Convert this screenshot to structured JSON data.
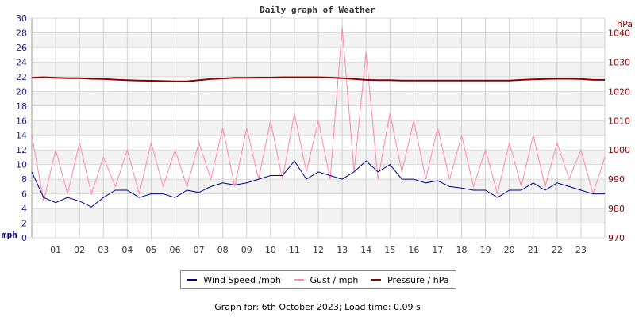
{
  "chart_data": {
    "type": "line",
    "title": "Daily graph of Weather",
    "x_ticks": [
      "01",
      "02",
      "03",
      "04",
      "05",
      "06",
      "07",
      "08",
      "09",
      "10",
      "11",
      "12",
      "13",
      "14",
      "15",
      "16",
      "17",
      "18",
      "19",
      "20",
      "21",
      "22",
      "23"
    ],
    "xlim": [
      0,
      24
    ],
    "left_axis": {
      "label": "mph",
      "ylim": [
        0,
        30
      ],
      "ticks": [
        0,
        2,
        4,
        6,
        8,
        10,
        12,
        14,
        16,
        18,
        20,
        22,
        24,
        26,
        28,
        30
      ]
    },
    "right_axis": {
      "label": "hPa",
      "ylim": [
        970,
        1045
      ],
      "ticks": [
        970,
        980,
        990,
        1000,
        1010,
        1020,
        1030,
        1040
      ]
    },
    "grid": true,
    "legend_position": "bottom",
    "x_hours": [
      0,
      0.5,
      1,
      1.5,
      2,
      2.5,
      3,
      3.5,
      4,
      4.5,
      5,
      5.5,
      6,
      6.5,
      7,
      7.5,
      8,
      8.5,
      9,
      9.5,
      10,
      10.5,
      11,
      11.5,
      12,
      12.5,
      13,
      13.5,
      14,
      14.5,
      15,
      15.5,
      16,
      16.5,
      17,
      17.5,
      18,
      18.5,
      19,
      19.5,
      20,
      20.5,
      21,
      21.5,
      22,
      22.5,
      23,
      23.5,
      24
    ],
    "series": [
      {
        "name": "Wind Speed /mph",
        "axis": "left",
        "color": "#00008b",
        "values": [
          9,
          5.5,
          4.8,
          5.5,
          5.0,
          4.2,
          5.5,
          6.5,
          6.5,
          5.5,
          6.0,
          6.0,
          5.5,
          6.5,
          6.2,
          7.0,
          7.5,
          7.2,
          7.5,
          8.0,
          8.5,
          8.5,
          10.5,
          8.0,
          9.0,
          8.5,
          8.0,
          9.0,
          10.5,
          9.0,
          10.0,
          8.0,
          8.0,
          7.5,
          7.8,
          7.0,
          6.8,
          6.5,
          6.5,
          5.5,
          6.5,
          6.5,
          7.5,
          6.5,
          7.5,
          7.0,
          6.5,
          6.0,
          6.0
        ]
      },
      {
        "name": "Gust / mph",
        "axis": "left",
        "color": "#ff88aa",
        "values": [
          14,
          5,
          12,
          6,
          13,
          6,
          11,
          7,
          12,
          6,
          13,
          7,
          12,
          7,
          13,
          8,
          15,
          7,
          15,
          8,
          16,
          8,
          17,
          9,
          16,
          8,
          28.8,
          9,
          25.4,
          8,
          17,
          9,
          16,
          8,
          15,
          8,
          14,
          7,
          12,
          6,
          13,
          7,
          14,
          7,
          13,
          8,
          12,
          6,
          11
        ]
      },
      {
        "name": "Pressure / hPa",
        "axis": "right",
        "color": "#8b0000",
        "values": [
          1024.6,
          1024.8,
          1024.6,
          1024.5,
          1024.5,
          1024.3,
          1024.2,
          1024.0,
          1023.8,
          1023.7,
          1023.6,
          1023.5,
          1023.4,
          1023.4,
          1023.8,
          1024.2,
          1024.4,
          1024.6,
          1024.6,
          1024.7,
          1024.7,
          1024.8,
          1024.8,
          1024.8,
          1024.8,
          1024.7,
          1024.5,
          1024.2,
          1023.9,
          1023.8,
          1023.8,
          1023.7,
          1023.7,
          1023.7,
          1023.7,
          1023.7,
          1023.7,
          1023.7,
          1023.7,
          1023.7,
          1023.7,
          1023.9,
          1024.1,
          1024.2,
          1024.3,
          1024.3,
          1024.2,
          1023.9,
          1023.9
        ]
      }
    ]
  },
  "footer": {
    "text": "Graph for: 6th October 2023; Load time: 0.09 s"
  }
}
